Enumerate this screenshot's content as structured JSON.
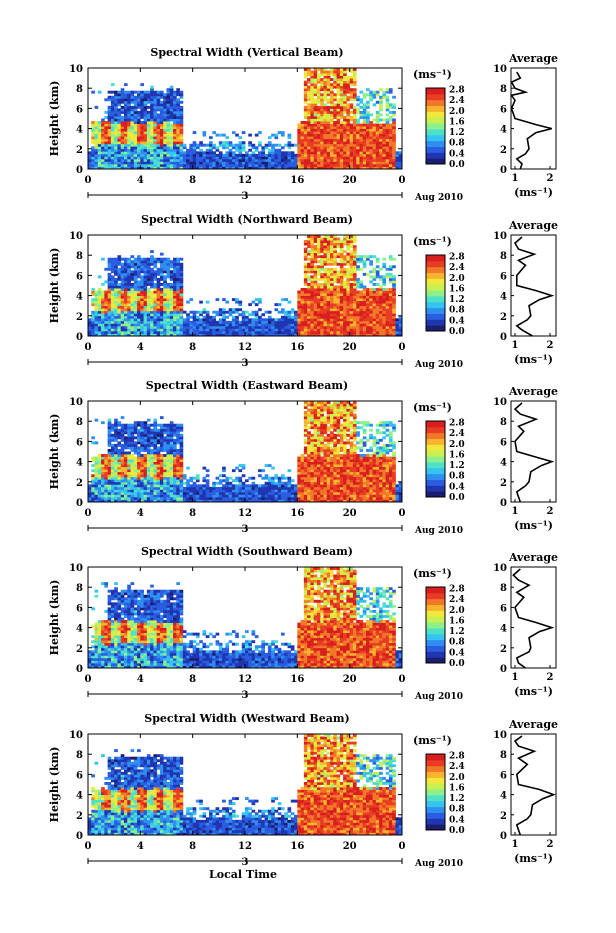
{
  "chart_data": {
    "type": "heatmap",
    "panels": [
      {
        "title": "Spectral Width (Vertical Beam)",
        "average_profile": [
          [
            1.15,
            0
          ],
          [
            1.2,
            0.5
          ],
          [
            1.05,
            1
          ],
          [
            1.3,
            1.5
          ],
          [
            1.4,
            2
          ],
          [
            1.35,
            3
          ],
          [
            1.6,
            3.6
          ],
          [
            2.05,
            4.0
          ],
          [
            1.6,
            4.4
          ],
          [
            1.0,
            5
          ],
          [
            0.9,
            6
          ],
          [
            1.0,
            6.8
          ],
          [
            0.9,
            7.3
          ],
          [
            1.3,
            7.6
          ],
          [
            1.0,
            8
          ],
          [
            0.9,
            8.6
          ],
          [
            1.15,
            9
          ],
          [
            1.05,
            9.6
          ]
        ],
        "average_ticks": [
          "1",
          "2"
        ]
      },
      {
        "title": "Spectral Width (Northward Beam)",
        "average_profile": [
          [
            1.5,
            0
          ],
          [
            1.2,
            0.6
          ],
          [
            1.05,
            1
          ],
          [
            1.35,
            1.6
          ],
          [
            1.45,
            2
          ],
          [
            1.4,
            3
          ],
          [
            1.7,
            3.6
          ],
          [
            2.05,
            4.0
          ],
          [
            1.6,
            4.5
          ],
          [
            1.05,
            5
          ],
          [
            1.05,
            6
          ],
          [
            1.3,
            7
          ],
          [
            1.1,
            7.5
          ],
          [
            1.55,
            8.1
          ],
          [
            1.1,
            8.6
          ],
          [
            1.0,
            9.2
          ],
          [
            1.2,
            9.8
          ]
        ],
        "average_ticks": [
          "1",
          "2"
        ]
      },
      {
        "title": "Spectral Width (Eastward Beam)",
        "average_profile": [
          [
            1.15,
            0
          ],
          [
            1.1,
            0.5
          ],
          [
            1.05,
            1
          ],
          [
            1.3,
            1.6
          ],
          [
            1.4,
            2
          ],
          [
            1.45,
            3
          ],
          [
            1.75,
            3.6
          ],
          [
            2.05,
            4.0
          ],
          [
            1.65,
            4.4
          ],
          [
            1.05,
            5
          ],
          [
            1.0,
            6
          ],
          [
            1.25,
            7
          ],
          [
            1.1,
            7.5
          ],
          [
            1.6,
            8.2
          ],
          [
            1.15,
            8.7
          ],
          [
            1.0,
            9.2
          ],
          [
            1.2,
            9.8
          ]
        ],
        "average_ticks": [
          "1",
          "2"
        ]
      },
      {
        "title": "Spectral Width (Southward Beam)",
        "average_profile": [
          [
            1.3,
            0
          ],
          [
            1.1,
            0.5
          ],
          [
            1.05,
            1
          ],
          [
            1.4,
            1.6
          ],
          [
            1.45,
            2
          ],
          [
            1.4,
            3
          ],
          [
            1.7,
            3.6
          ],
          [
            2.05,
            4.0
          ],
          [
            1.6,
            4.5
          ],
          [
            1.1,
            5
          ],
          [
            1.0,
            6
          ],
          [
            1.25,
            7
          ],
          [
            1.05,
            7.5
          ],
          [
            1.4,
            8.2
          ],
          [
            1.1,
            8.7
          ],
          [
            0.95,
            9.2
          ],
          [
            1.15,
            9.8
          ]
        ],
        "average_ticks": [
          "1",
          "2"
        ]
      },
      {
        "title": "Spectral Width (Westward Beam)",
        "average_profile": [
          [
            1.15,
            0
          ],
          [
            1.1,
            0.5
          ],
          [
            1.05,
            1
          ],
          [
            1.35,
            1.6
          ],
          [
            1.45,
            2
          ],
          [
            1.5,
            3
          ],
          [
            1.8,
            3.6
          ],
          [
            2.1,
            4.0
          ],
          [
            1.7,
            4.5
          ],
          [
            1.1,
            5
          ],
          [
            1.05,
            6
          ],
          [
            1.35,
            7
          ],
          [
            1.1,
            7.6
          ],
          [
            1.55,
            8.3
          ],
          [
            1.1,
            8.8
          ],
          [
            1.0,
            9.3
          ],
          [
            1.2,
            9.8
          ]
        ],
        "average_ticks": [
          "1",
          "2"
        ]
      }
    ],
    "x_ticks": [
      "0",
      "4",
      "8",
      "12",
      "16",
      "20",
      "0"
    ],
    "x_range": [
      0,
      24
    ],
    "date_label": "3",
    "date_suffix": "Aug 2010",
    "xlabel": "Local Time",
    "ylabel": "Height (km)",
    "y_ticks": [
      "0",
      "2",
      "4",
      "6",
      "8",
      "10"
    ],
    "ylim": [
      0,
      10
    ],
    "colorbar": {
      "unit": "(ms⁻¹)",
      "ticks": [
        "0.0",
        "0.4",
        "0.8",
        "1.2",
        "1.6",
        "2.0",
        "2.4",
        "2.8"
      ],
      "colors": [
        "#1b1e6e",
        "#2035b0",
        "#2a5de0",
        "#2f8ff0",
        "#35c3f0",
        "#4fe0c8",
        "#8ef08a",
        "#c8f050",
        "#f0e83c",
        "#f8b42c",
        "#f07828",
        "#e83c24",
        "#d81e1e"
      ]
    },
    "average_title": "Average",
    "average_xlabel": "(ms⁻¹)",
    "average_y_ticks": [
      "0",
      "2",
      "4",
      "6",
      "8",
      "10"
    ]
  }
}
